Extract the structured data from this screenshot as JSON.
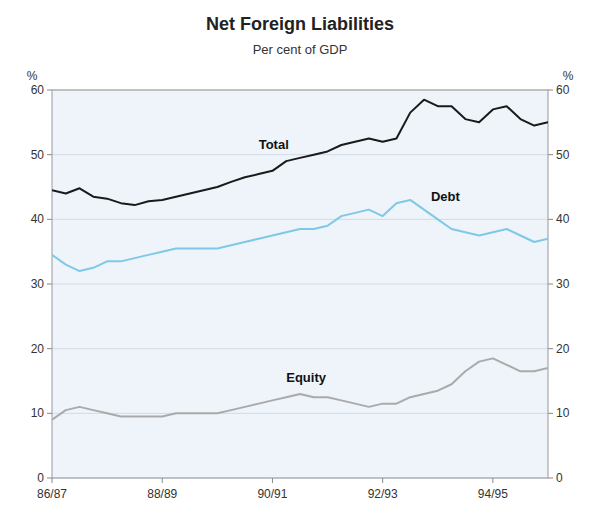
{
  "chart_data": {
    "type": "line",
    "title": "Net Foreign Liabilities",
    "subtitle": "Per cent of GDP",
    "ylabel": "%",
    "y2label": "%",
    "categories": [
      "86/87",
      null,
      null,
      null,
      null,
      null,
      null,
      null,
      "88/89",
      null,
      null,
      null,
      null,
      null,
      null,
      null,
      "90/91",
      null,
      null,
      null,
      null,
      null,
      null,
      null,
      "92/93",
      null,
      null,
      null,
      null,
      null,
      null,
      null,
      "94/95",
      null,
      null,
      null,
      null
    ],
    "series": [
      {
        "name": "Total",
        "color": "#1a1a1a",
        "values": [
          44.5,
          44.0,
          44.8,
          43.5,
          43.2,
          42.5,
          42.2,
          42.8,
          43.0,
          43.5,
          44.0,
          44.5,
          45.0,
          45.8,
          46.5,
          47.0,
          47.5,
          49.0,
          49.5,
          50.0,
          50.5,
          51.5,
          52.0,
          52.5,
          52.0,
          52.5,
          56.5,
          58.5,
          57.5,
          57.5,
          55.5,
          55.0,
          57.0,
          57.5,
          55.5,
          54.5,
          55.0
        ]
      },
      {
        "name": "Debt",
        "color": "#7ec8e8",
        "values": [
          34.5,
          33.0,
          32.0,
          32.5,
          33.5,
          33.5,
          34.0,
          34.5,
          35.0,
          35.5,
          35.5,
          35.5,
          35.5,
          36.0,
          36.5,
          37.0,
          37.5,
          38.0,
          38.5,
          38.5,
          39.0,
          40.5,
          41.0,
          41.5,
          40.5,
          42.5,
          43.0,
          41.5,
          40.0,
          38.5,
          38.0,
          37.5,
          38.0,
          38.5,
          37.5,
          36.5,
          37.0
        ]
      },
      {
        "name": "Equity",
        "color": "#aaaaaa",
        "values": [
          9.0,
          10.5,
          11.0,
          10.5,
          10.0,
          9.5,
          9.5,
          9.5,
          9.5,
          10.0,
          10.0,
          10.0,
          10.0,
          10.5,
          11.0,
          11.5,
          12.0,
          12.5,
          13.0,
          12.5,
          12.5,
          12.0,
          11.5,
          11.0,
          11.5,
          11.5,
          12.5,
          13.0,
          13.5,
          14.5,
          16.5,
          18.0,
          18.5,
          17.5,
          16.5,
          16.5,
          17.0
        ]
      }
    ],
    "annotations": [
      {
        "text": "Total",
        "x": 15,
        "y": 50.8
      },
      {
        "text": "Debt",
        "x": 27.5,
        "y": 42.8
      },
      {
        "text": "Equity",
        "x": 17,
        "y": 14.8
      }
    ],
    "ylim": [
      0,
      60
    ],
    "yticks": [
      0,
      10,
      20,
      30,
      40,
      50,
      60
    ],
    "y2lim": [
      0,
      60
    ],
    "y2ticks": [
      0,
      10,
      20,
      30,
      40,
      50,
      60
    ],
    "grid": true
  }
}
